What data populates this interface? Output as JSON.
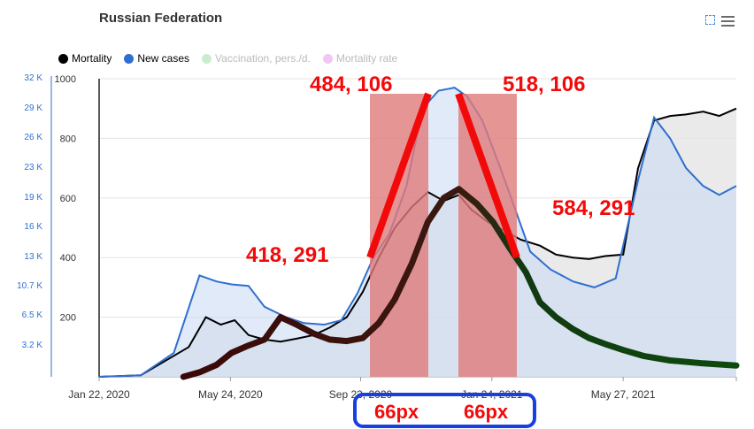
{
  "header": {
    "title": "Russian Federation"
  },
  "colors": {
    "mortality": "#000000",
    "new_cases": "#2f6fd0",
    "vaccination": "#c9eccf",
    "mortality_rate": "#f2c6f2",
    "annotation": "#f20a0a",
    "shading": "#e07b7b",
    "highlight_box": "#1a3fe0"
  },
  "legend": [
    {
      "label": "Mortality",
      "color": "#000000",
      "hidden": false
    },
    {
      "label": "New cases",
      "color": "#2f6fd0",
      "hidden": false
    },
    {
      "label": "Vaccination, pers./d.",
      "color": "#c9eccf",
      "hidden": true
    },
    {
      "label": "Mortality rate",
      "color": "#f2c6f2",
      "hidden": true
    }
  ],
  "chart_data": {
    "type": "area",
    "x_tick_labels": [
      "Jan 22, 2020",
      "May 24, 2020",
      "Sep 23, 2020",
      "Jan 24, 2021",
      "May 27, 2021"
    ],
    "y_left": {
      "ticks": [
        200,
        400,
        600,
        800,
        1000
      ],
      "ylim": [
        0,
        1000
      ]
    },
    "y_right": {
      "ticks": [
        "3.2 K",
        "6.5 K",
        "10.7 K",
        "13 K",
        "16 K",
        "19 K",
        "23 K",
        "26 K",
        "29 K",
        "32 K"
      ]
    },
    "grid": true,
    "legend_position": "top-left",
    "series": [
      {
        "name": "Mortality",
        "x": [
          "2020-01-22",
          "2020-03-01",
          "2020-04-15",
          "2020-05-01",
          "2020-05-15",
          "2020-05-28",
          "2020-06-10",
          "2020-06-25",
          "2020-07-10",
          "2020-07-25",
          "2020-08-10",
          "2020-08-25",
          "2020-09-10",
          "2020-09-25",
          "2020-10-10",
          "2020-10-25",
          "2020-11-10",
          "2020-11-25",
          "2020-12-10",
          "2020-12-24",
          "2021-01-05",
          "2021-01-20",
          "2021-02-05",
          "2021-02-20",
          "2021-03-10",
          "2021-03-25",
          "2021-04-10",
          "2021-04-25",
          "2021-05-10",
          "2021-05-27",
          "2021-06-10",
          "2021-06-25",
          "2021-07-10",
          "2021-07-25",
          "2021-08-10",
          "2021-08-25",
          "2021-09-10"
        ],
        "values": [
          0,
          5,
          100,
          200,
          175,
          190,
          140,
          125,
          118,
          128,
          140,
          165,
          200,
          285,
          400,
          500,
          570,
          620,
          590,
          610,
          560,
          520,
          490,
          460,
          440,
          410,
          400,
          395,
          405,
          410,
          700,
          860,
          875,
          880,
          890,
          875,
          900
        ]
      },
      {
        "name": "New cases",
        "x": [
          "2020-01-22",
          "2020-03-01",
          "2020-04-01",
          "2020-04-25",
          "2020-05-11",
          "2020-05-25",
          "2020-06-10",
          "2020-06-25",
          "2020-07-15",
          "2020-08-01",
          "2020-08-20",
          "2020-09-05",
          "2020-09-20",
          "2020-10-05",
          "2020-10-20",
          "2020-11-05",
          "2020-11-20",
          "2020-12-05",
          "2020-12-20",
          "2021-01-01",
          "2021-01-15",
          "2021-02-01",
          "2021-02-15",
          "2021-03-01",
          "2021-03-20",
          "2021-04-10",
          "2021-04-30",
          "2021-05-20",
          "2021-06-10",
          "2021-06-25",
          "2021-07-10",
          "2021-07-25",
          "2021-08-10",
          "2021-08-25",
          "2021-09-10"
        ],
        "values": [
          0,
          5,
          80,
          340,
          320,
          310,
          305,
          235,
          200,
          180,
          175,
          190,
          280,
          400,
          480,
          640,
          900,
          960,
          970,
          940,
          860,
          700,
          560,
          420,
          360,
          320,
          300,
          330,
          660,
          870,
          800,
          700,
          640,
          610,
          640
        ]
      },
      {
        "name": "annotation-curve",
        "x": [
          "2020-04-10",
          "2020-04-25",
          "2020-05-11",
          "2020-05-25",
          "2020-06-10",
          "2020-06-25",
          "2020-07-10",
          "2020-07-25",
          "2020-08-10",
          "2020-08-25",
          "2020-09-10",
          "2020-09-25",
          "2020-10-10",
          "2020-10-25",
          "2020-11-10",
          "2020-11-25",
          "2020-12-10",
          "2020-12-24",
          "2021-01-10",
          "2021-01-25",
          "2021-02-10",
          "2021-02-25",
          "2021-03-10",
          "2021-03-25",
          "2021-04-10",
          "2021-04-25",
          "2021-05-10",
          "2021-05-27",
          "2021-06-15",
          "2021-07-10",
          "2021-08-10",
          "2021-09-10"
        ],
        "values": [
          0,
          15,
          40,
          80,
          105,
          125,
          200,
          175,
          145,
          125,
          120,
          130,
          180,
          260,
          380,
          520,
          600,
          630,
          580,
          520,
          430,
          350,
          250,
          200,
          160,
          130,
          110,
          90,
          70,
          55,
          45,
          38
        ]
      }
    ],
    "annotations": [
      "484, 106",
      "518, 106",
      "418, 291",
      "584, 291",
      "66px",
      "66px"
    ]
  }
}
